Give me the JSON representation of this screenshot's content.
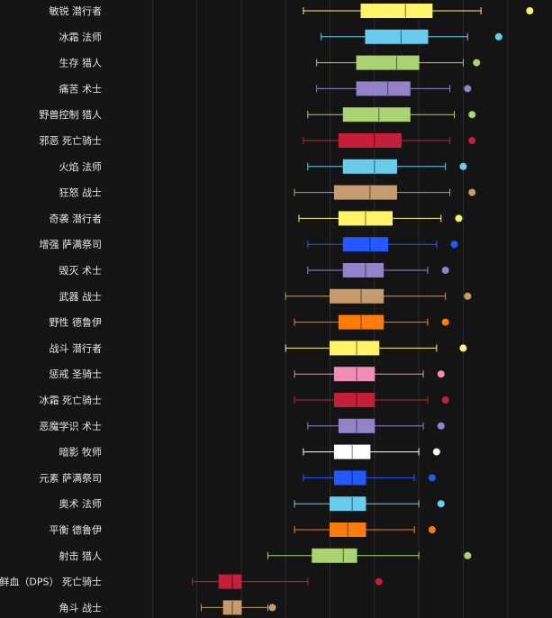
{
  "chart_data": {
    "type": "box",
    "title": "",
    "xlabel": "",
    "ylabel": "",
    "grid": true,
    "legend": "none",
    "xlim": [
      0,
      100
    ],
    "outlier_marker": "circle",
    "categories": [
      {
        "label": "敏锐 潜行者",
        "color": "#FFF468",
        "whisker_low": 44,
        "q1": 57,
        "median": 67,
        "q3": 73,
        "whisker_high": 84,
        "outlier": 95
      },
      {
        "label": "冰霜 法师",
        "color": "#68CCEF",
        "whisker_low": 48,
        "q1": 58,
        "median": 66,
        "q3": 72,
        "whisker_high": 81,
        "outlier": 88
      },
      {
        "label": "生存 猎人",
        "color": "#AAD372",
        "whisker_low": 47,
        "q1": 56,
        "median": 65,
        "q3": 70,
        "whisker_high": 80,
        "outlier": 83
      },
      {
        "label": "痛苦 术士",
        "color": "#9382C9",
        "whisker_low": 47,
        "q1": 56,
        "median": 63,
        "q3": 68,
        "whisker_high": 77,
        "outlier": 81
      },
      {
        "label": "野兽控制 猎人",
        "color": "#AAD372",
        "whisker_low": 45,
        "q1": 53,
        "median": 61,
        "q3": 68,
        "whisker_high": 78,
        "outlier": 82
      },
      {
        "label": "邪恶 死亡骑士",
        "color": "#C41E3A",
        "whisker_low": 44,
        "q1": 52,
        "median": 60,
        "q3": 66,
        "whisker_high": 77,
        "outlier": 82
      },
      {
        "label": "火焰 法师",
        "color": "#68CCEF",
        "whisker_low": 45,
        "q1": 53,
        "median": 60,
        "q3": 65,
        "whisker_high": 76,
        "outlier": 80
      },
      {
        "label": "狂怒 战士",
        "color": "#C69B6D",
        "whisker_low": 42,
        "q1": 51,
        "median": 59,
        "q3": 65,
        "whisker_high": 77,
        "outlier": 82
      },
      {
        "label": "奇袭 潜行者",
        "color": "#FFF468",
        "whisker_low": 43,
        "q1": 52,
        "median": 58,
        "q3": 64,
        "whisker_high": 75,
        "outlier": 79
      },
      {
        "label": "增强 萨满祭司",
        "color": "#2359FF",
        "whisker_low": 45,
        "q1": 53,
        "median": 59,
        "q3": 63,
        "whisker_high": 74,
        "outlier": 78
      },
      {
        "label": "毁灭 术士",
        "color": "#9382C9",
        "whisker_low": 45,
        "q1": 53,
        "median": 58,
        "q3": 62,
        "whisker_high": 72,
        "outlier": 76
      },
      {
        "label": "武器 战士",
        "color": "#C69B6D",
        "whisker_low": 40,
        "q1": 50,
        "median": 57,
        "q3": 62,
        "whisker_high": 76,
        "outlier": 81
      },
      {
        "label": "野性 德鲁伊",
        "color": "#FF7C0A",
        "whisker_low": 42,
        "q1": 52,
        "median": 57,
        "q3": 62,
        "whisker_high": 72,
        "outlier": 76
      },
      {
        "label": "战斗 潜行者",
        "color": "#FFF468",
        "whisker_low": 40,
        "q1": 50,
        "median": 56,
        "q3": 61,
        "whisker_high": 74,
        "outlier": 80
      },
      {
        "label": "惩戒 圣骑士",
        "color": "#F48CBA",
        "whisker_low": 42,
        "q1": 51,
        "median": 56,
        "q3": 60,
        "whisker_high": 71,
        "outlier": 75
      },
      {
        "label": "冰霜 死亡骑士",
        "color": "#C41E3A",
        "whisker_low": 42,
        "q1": 51,
        "median": 56,
        "q3": 60,
        "whisker_high": 72,
        "outlier": 76
      },
      {
        "label": "恶魔学识 术士",
        "color": "#9382C9",
        "whisker_low": 45,
        "q1": 52,
        "median": 56,
        "q3": 60,
        "whisker_high": 71,
        "outlier": 75
      },
      {
        "label": "暗影 牧师",
        "color": "#FFFFFF",
        "whisker_low": 44,
        "q1": 51,
        "median": 55,
        "q3": 59,
        "whisker_high": 70,
        "outlier": 74
      },
      {
        "label": "元素 萨满祭司",
        "color": "#2359FF",
        "whisker_low": 44,
        "q1": 51,
        "median": 55,
        "q3": 58,
        "whisker_high": 69,
        "outlier": 73
      },
      {
        "label": "奥术 法师",
        "color": "#68CCEF",
        "whisker_low": 42,
        "q1": 50,
        "median": 55,
        "q3": 58,
        "whisker_high": 70,
        "outlier": 75
      },
      {
        "label": "平衡 德鲁伊",
        "color": "#FF7C0A",
        "whisker_low": 42,
        "q1": 50,
        "median": 54,
        "q3": 58,
        "whisker_high": 69,
        "outlier": 73
      },
      {
        "label": "射击 猎人",
        "color": "#AAD372",
        "whisker_low": 36,
        "q1": 46,
        "median": 53,
        "q3": 56,
        "whisker_high": 70,
        "outlier": 81
      },
      {
        "label": "鲜血（DPS） 死亡骑士",
        "color": "#C41E3A",
        "whisker_low": 19,
        "q1": 25,
        "median": 28,
        "q3": 30,
        "whisker_high": 45,
        "outlier": 61
      },
      {
        "label": "角斗 战士",
        "color": "#C69B6D",
        "whisker_low": 21,
        "q1": 26,
        "median": 28,
        "q3": 30,
        "whisker_high": 36,
        "outlier": 37
      }
    ]
  }
}
